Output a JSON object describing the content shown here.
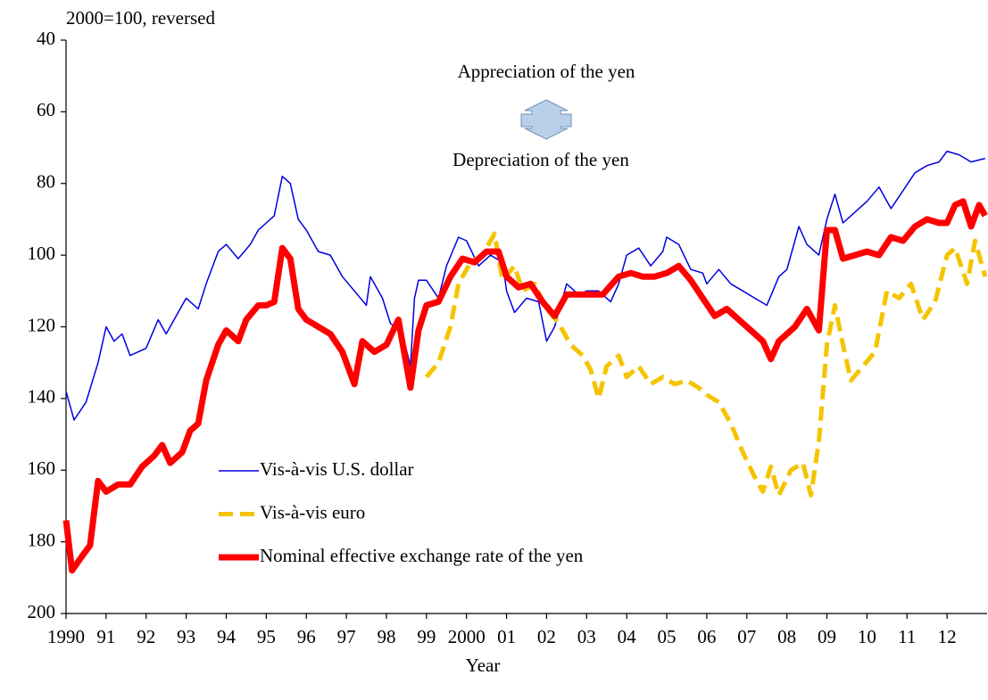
{
  "chart_data": {
    "type": "line",
    "unit_note": "2000=100, reversed",
    "annotation_up": "Appreciation of the yen",
    "annotation_down": "Depreciation of the yen",
    "x_label": "Year",
    "reversed_y": true,
    "ylim": [
      40,
      200
    ],
    "yticks": [
      40,
      60,
      80,
      100,
      120,
      140,
      160,
      180,
      200
    ],
    "xlim": [
      1990,
      2013
    ],
    "xticks": [
      1990,
      {
        "value": 1991,
        "label": "91"
      },
      {
        "value": 1992,
        "label": "92"
      },
      {
        "value": 1993,
        "label": "93"
      },
      {
        "value": 1994,
        "label": "94"
      },
      {
        "value": 1995,
        "label": "95"
      },
      {
        "value": 1996,
        "label": "96"
      },
      {
        "value": 1997,
        "label": "97"
      },
      {
        "value": 1998,
        "label": "98"
      },
      {
        "value": 1999,
        "label": "99"
      },
      2000,
      {
        "value": 2001,
        "label": "01"
      },
      {
        "value": 2002,
        "label": "02"
      },
      {
        "value": 2003,
        "label": "03"
      },
      {
        "value": 2004,
        "label": "04"
      },
      {
        "value": 2005,
        "label": "05"
      },
      {
        "value": 2006,
        "label": "06"
      },
      {
        "value": 2007,
        "label": "07"
      },
      {
        "value": 2008,
        "label": "08"
      },
      {
        "value": 2009,
        "label": "09"
      },
      {
        "value": 2010,
        "label": "10"
      },
      {
        "value": 2011,
        "label": "11"
      },
      {
        "value": 2012,
        "label": "12"
      }
    ],
    "series": [
      {
        "name": "Vis-à-vis U.S. dollar",
        "color": "#0000e0",
        "width": 1.5,
        "dash": false,
        "x": [
          1990.0,
          1990.2,
          1990.5,
          1990.8,
          1991.0,
          1991.2,
          1991.4,
          1991.6,
          1992.0,
          1992.3,
          1992.5,
          1992.8,
          1993.0,
          1993.3,
          1993.5,
          1993.8,
          1994.0,
          1994.3,
          1994.6,
          1994.8,
          1995.0,
          1995.2,
          1995.4,
          1995.6,
          1995.8,
          1996.0,
          1996.3,
          1996.6,
          1996.9,
          1997.2,
          1997.5,
          1997.6,
          1997.9,
          1998.1,
          1998.4,
          1998.6,
          1998.7,
          1998.8,
          1999.0,
          1999.3,
          1999.5,
          1999.8,
          2000.0,
          2000.3,
          2000.6,
          2000.9,
          2001.0,
          2001.2,
          2001.5,
          2001.8,
          2002.0,
          2002.2,
          2002.5,
          2002.8,
          2003.0,
          2003.3,
          2003.6,
          2003.8,
          2004.0,
          2004.3,
          2004.6,
          2004.9,
          2005.0,
          2005.3,
          2005.6,
          2005.9,
          2006.0,
          2006.3,
          2006.6,
          2006.9,
          2007.2,
          2007.5,
          2007.8,
          2008.0,
          2008.3,
          2008.5,
          2008.8,
          2009.0,
          2009.2,
          2009.4,
          2009.7,
          2010.0,
          2010.3,
          2010.6,
          2010.9,
          2011.2,
          2011.5,
          2011.8,
          2012.0,
          2012.3,
          2012.6,
          2012.95
        ],
        "values": [
          138,
          146,
          141,
          130,
          120,
          124,
          122,
          128,
          126,
          118,
          122,
          116,
          112,
          115,
          108,
          99,
          97,
          101,
          97,
          93,
          91,
          89,
          78,
          80,
          90,
          93,
          99,
          100,
          106,
          110,
          114,
          106,
          112,
          119,
          122,
          131,
          112,
          107,
          107,
          112,
          103,
          95,
          96,
          103,
          100,
          102,
          110,
          116,
          112,
          113,
          124,
          120,
          108,
          111,
          110,
          110,
          113,
          108,
          100,
          98,
          103,
          99,
          95,
          97,
          104,
          105,
          108,
          104,
          108,
          110,
          112,
          114,
          106,
          104,
          92,
          97,
          100,
          90,
          83,
          91,
          88,
          85,
          81,
          87,
          82,
          77,
          75,
          74,
          71,
          72,
          74,
          73
        ]
      },
      {
        "name": "Vis-à-vis euro",
        "color": "#f5c400",
        "width": 5,
        "dash": true,
        "x": [
          1999.0,
          1999.3,
          1999.6,
          1999.8,
          2000.1,
          2000.4,
          2000.7,
          2000.9,
          2001.2,
          2001.4,
          2001.7,
          2002.0,
          2002.3,
          2002.6,
          2002.9,
          2003.1,
          2003.3,
          2003.5,
          2003.8,
          2004.0,
          2004.3,
          2004.6,
          2004.9,
          2005.2,
          2005.5,
          2005.8,
          2006.0,
          2006.3,
          2006.6,
          2006.9,
          2007.2,
          2007.4,
          2007.6,
          2007.8,
          2008.1,
          2008.4,
          2008.6,
          2008.8,
          2009.0,
          2009.2,
          2009.4,
          2009.6,
          2009.9,
          2010.2,
          2010.5,
          2010.8,
          2011.1,
          2011.4,
          2011.7,
          2012.0,
          2012.2,
          2012.5,
          2012.7,
          2012.95
        ],
        "values": [
          134,
          130,
          120,
          108,
          102,
          100,
          94,
          107,
          103,
          110,
          108,
          115,
          119,
          125,
          128,
          132,
          140,
          131,
          128,
          134,
          131,
          136,
          134,
          136,
          135,
          137,
          139,
          141,
          147,
          155,
          162,
          166,
          159,
          167,
          160,
          158,
          167,
          152,
          125,
          114,
          125,
          135,
          131,
          127,
          110,
          112,
          108,
          118,
          113,
          100,
          98,
          108,
          96,
          106
        ]
      },
      {
        "name": "Nominal effective exchange rate of the yen",
        "color": "#ff0000",
        "width": 7,
        "dash": false,
        "x": [
          1990.0,
          1990.15,
          1990.4,
          1990.6,
          1990.8,
          1991.0,
          1991.3,
          1991.6,
          1991.9,
          1992.2,
          1992.4,
          1992.6,
          1992.9,
          1993.1,
          1993.3,
          1993.5,
          1993.8,
          1994.0,
          1994.3,
          1994.5,
          1994.8,
          1995.0,
          1995.2,
          1995.4,
          1995.6,
          1995.8,
          1996.0,
          1996.3,
          1996.6,
          1996.9,
          1997.2,
          1997.4,
          1997.7,
          1998.0,
          1998.3,
          1998.6,
          1998.8,
          1999.0,
          1999.3,
          1999.6,
          1999.9,
          2000.2,
          2000.5,
          2000.8,
          2001.0,
          2001.3,
          2001.6,
          2001.9,
          2002.2,
          2002.5,
          2002.8,
          2003.1,
          2003.4,
          2003.8,
          2004.1,
          2004.4,
          2004.7,
          2005.0,
          2005.3,
          2005.6,
          2005.9,
          2006.2,
          2006.5,
          2006.8,
          2007.1,
          2007.4,
          2007.6,
          2007.8,
          2008.0,
          2008.2,
          2008.5,
          2008.8,
          2009.0,
          2009.2,
          2009.4,
          2009.7,
          2010.0,
          2010.3,
          2010.6,
          2010.9,
          2011.2,
          2011.5,
          2011.8,
          2012.0,
          2012.2,
          2012.4,
          2012.6,
          2012.8,
          2012.95
        ],
        "values": [
          174,
          188,
          184,
          181,
          163,
          166,
          164,
          164,
          159,
          156,
          153,
          158,
          155,
          149,
          147,
          135,
          125,
          121,
          124,
          118,
          114,
          114,
          113,
          98,
          101,
          115,
          118,
          120,
          122,
          127,
          136,
          124,
          127,
          125,
          118,
          137,
          121,
          114,
          113,
          106,
          101,
          102,
          99,
          99,
          106,
          109,
          108,
          113,
          117,
          111,
          111,
          111,
          111,
          106,
          105,
          106,
          106,
          105,
          103,
          107,
          112,
          117,
          115,
          118,
          121,
          124,
          129,
          124,
          122,
          120,
          115,
          121,
          93,
          93,
          101,
          100,
          99,
          100,
          95,
          96,
          92,
          90,
          91,
          91,
          86,
          85,
          92,
          86,
          89
        ]
      }
    ]
  }
}
